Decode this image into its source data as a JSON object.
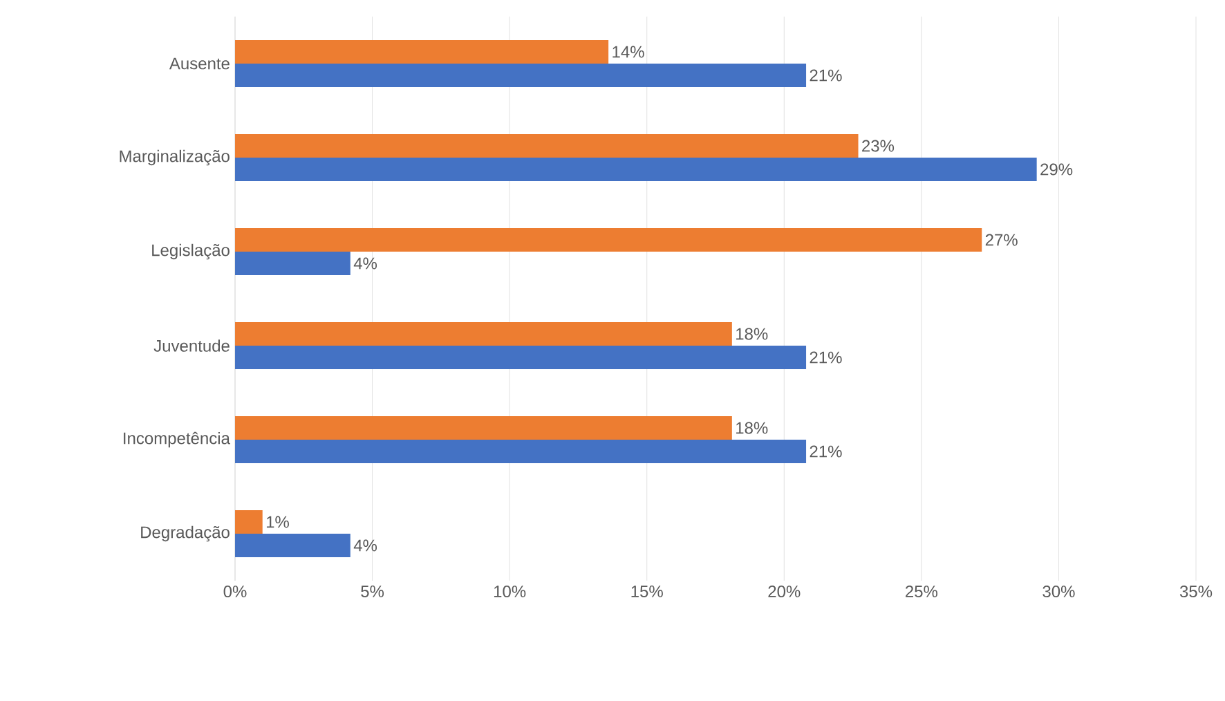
{
  "chart_data": {
    "type": "bar",
    "orientation": "horizontal",
    "categories": [
      "Ausente",
      "Marginalização",
      "Legislação",
      "Juventude",
      "Incompetência",
      "Degradação"
    ],
    "series": [
      {
        "color": "#ed7d31",
        "values": [
          13.6,
          22.7,
          27.2,
          18.1,
          18.1,
          1.0
        ],
        "value_labels": [
          "14%",
          "23%",
          "27%",
          "18%",
          "18%",
          "1%"
        ]
      },
      {
        "color": "#4472c4",
        "values": [
          20.8,
          29.2,
          4.2,
          20.8,
          20.8,
          4.2
        ],
        "value_labels": [
          "21%",
          "29%",
          "4%",
          "21%",
          "21%",
          "4%"
        ]
      }
    ],
    "xlim": [
      0,
      35
    ],
    "xticks": [
      {
        "value": 0,
        "label": "0%"
      },
      {
        "value": 5,
        "label": "5%"
      },
      {
        "value": 10,
        "label": "10%"
      },
      {
        "value": 15,
        "label": "15%"
      },
      {
        "value": 20,
        "label": "20%"
      },
      {
        "value": 25,
        "label": "25%"
      },
      {
        "value": 30,
        "label": "30%"
      },
      {
        "value": 35,
        "label": "35%"
      }
    ],
    "grid": "x"
  }
}
